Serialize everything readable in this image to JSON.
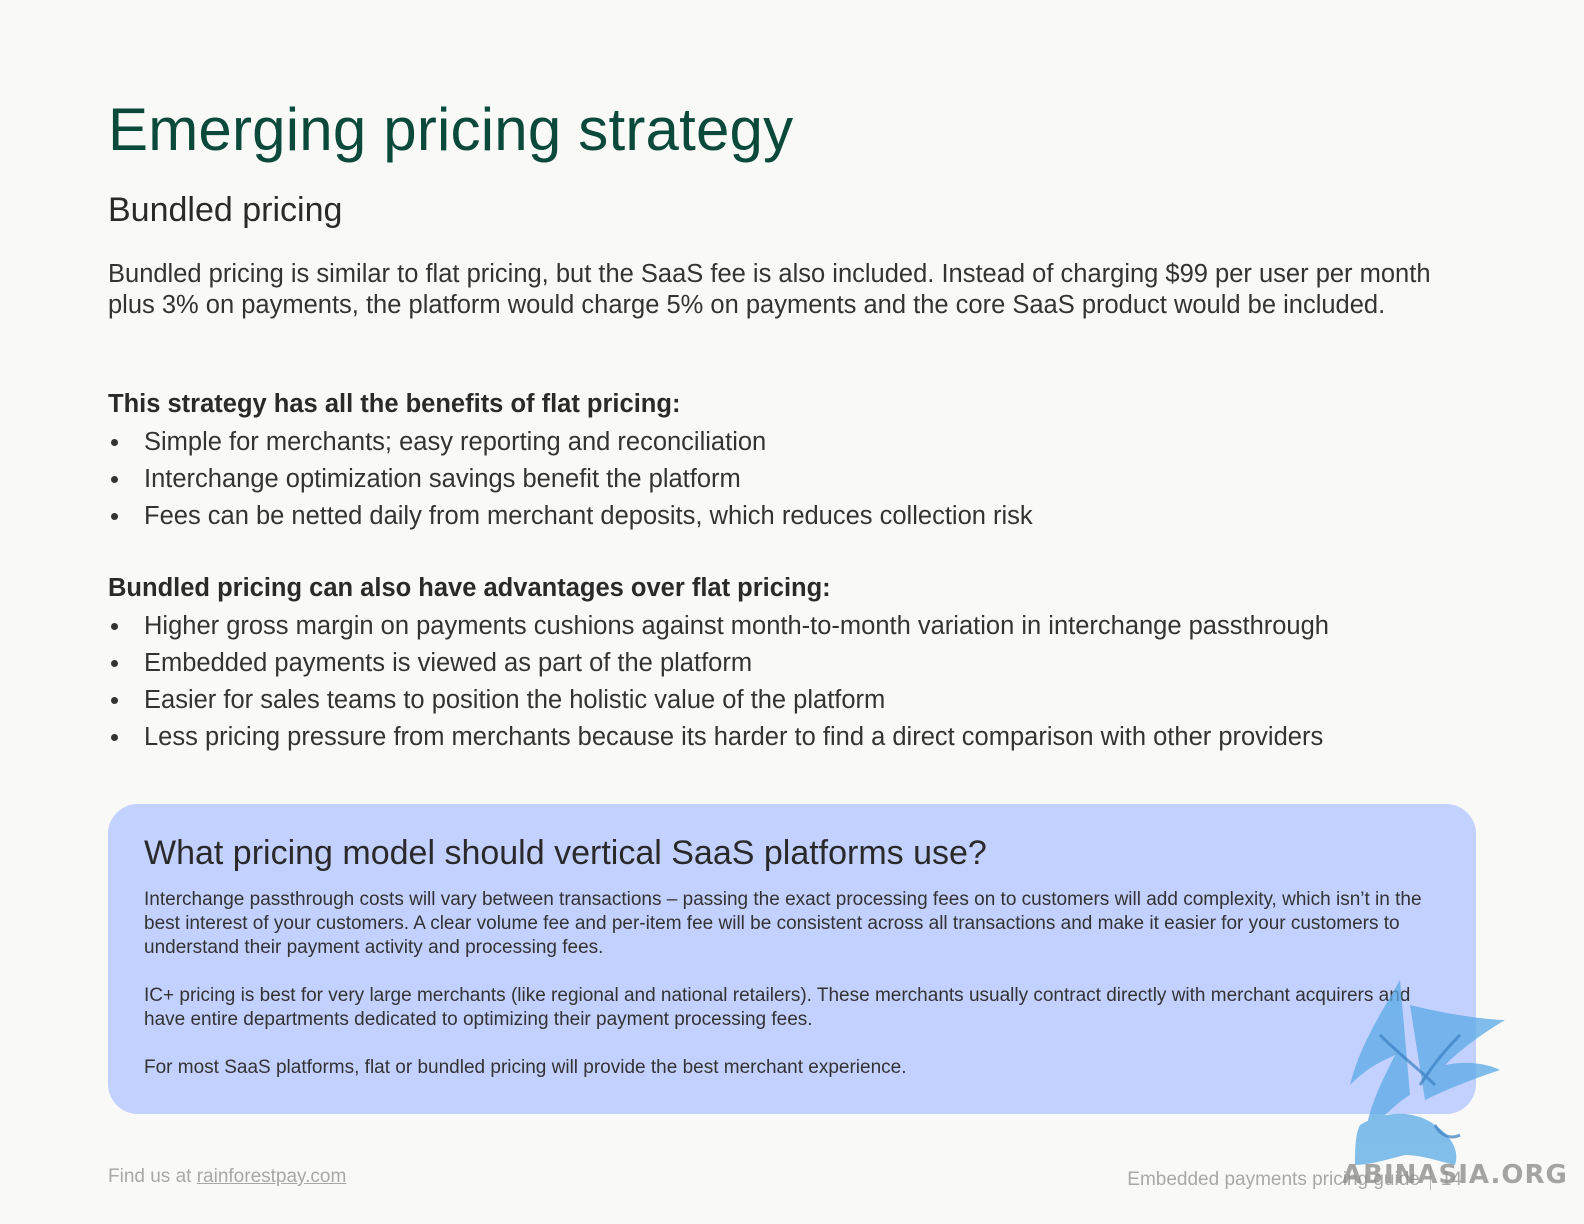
{
  "page": {
    "title": "Emerging pricing strategy",
    "subtitle": "Bundled pricing",
    "intro": "Bundled pricing is similar to flat pricing, but the SaaS fee is also included. Instead of charging $99 per user per month plus 3% on payments, the platform would charge 5% on payments and the core SaaS product would be included."
  },
  "sections": [
    {
      "heading": "This strategy has all the benefits of flat pricing:",
      "items": [
        "Simple for merchants; easy reporting and reconciliation",
        "Interchange optimization savings benefit the platform",
        "Fees can be netted daily from merchant deposits, which reduces collection risk"
      ]
    },
    {
      "heading": "Bundled pricing can also have advantages over flat pricing:",
      "items": [
        "Higher gross margin on payments cushions against month-to-month variation in interchange passthrough",
        "Embedded payments is viewed as part of the platform",
        "Easier for sales teams to position the holistic value of the platform",
        "Less pricing pressure from merchants because its harder to find a direct comparison with other providers"
      ]
    }
  ],
  "callout": {
    "title": "What pricing model should vertical SaaS platforms use?",
    "paragraphs": [
      "Interchange passthrough costs will vary between transactions – passing the exact processing fees on to customers will add complexity, which isn’t in the best interest of your customers. A clear volume fee and per-item fee will be consistent across all transactions and make it easier for your customers to understand their payment activity and processing fees.",
      "IC+ pricing is best for very large merchants (like regional and national retailers). These merchants usually contract directly with merchant acquirers and have entire departments dedicated to optimizing their payment processing fees.",
      "For most SaaS platforms, flat or bundled pricing will provide the best merchant experience."
    ]
  },
  "footer": {
    "left_prefix": "Find us at ",
    "link_text": "rainforestpay.com",
    "right_text": "Embedded payments pricing guide",
    "page_number": "14"
  },
  "watermark": {
    "text": "ABINASIA.ORG"
  },
  "colors": {
    "title": "#0b4a3a",
    "callout_bg": "#c2d1ff",
    "page_bg": "#f9f9f7",
    "footer_text": "#a8a8a8"
  }
}
